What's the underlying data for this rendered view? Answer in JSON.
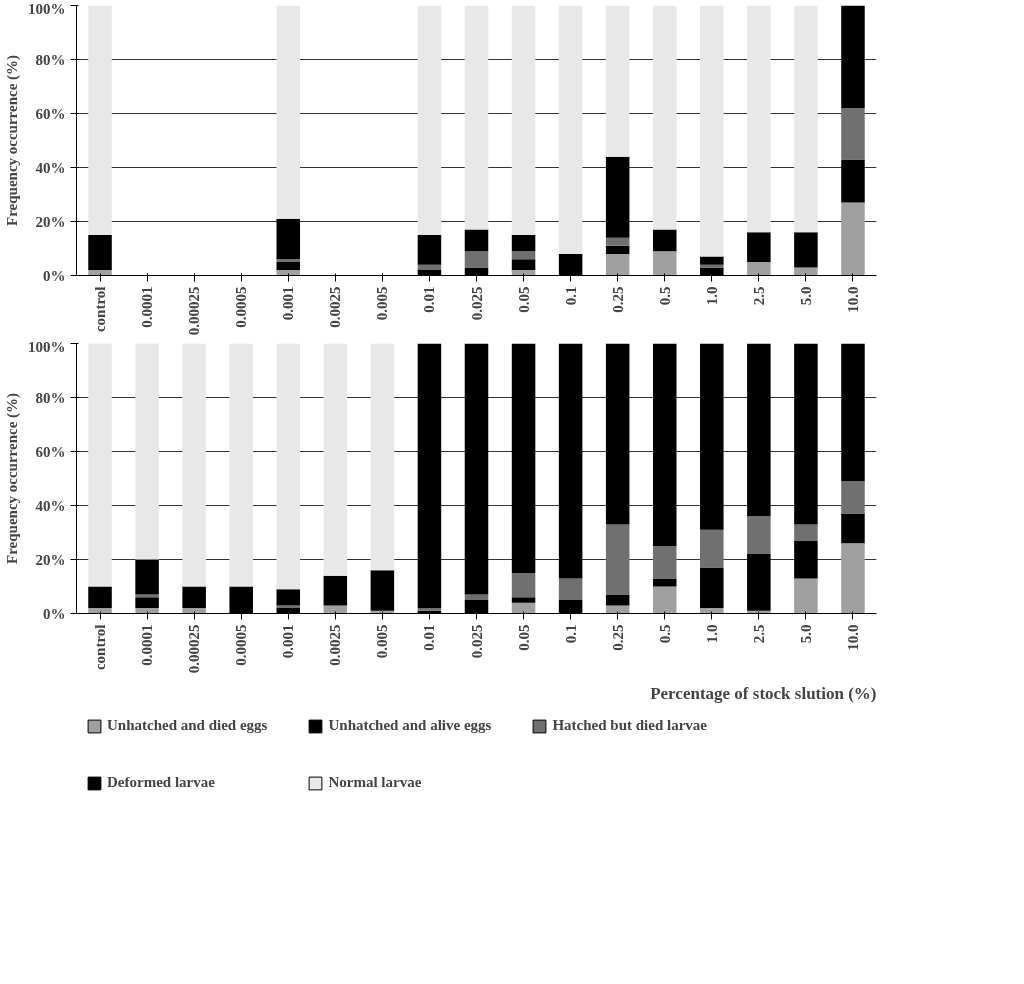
{
  "chart_data": [
    {
      "type": "bar",
      "stacked": true,
      "ylabel": "Frequency occurrence (%)",
      "categories": [
        "control",
        "0.0001",
        "0.00025",
        "0.0005",
        "0.001",
        "0.0025",
        "0.005",
        "0.01",
        "0.025",
        "0.05",
        "0.1",
        "0.25",
        "0.5",
        "1.0",
        "2.5",
        "5.0",
        "10.0"
      ],
      "ylim": [
        0,
        100
      ],
      "yticks": [
        {
          "value": 0,
          "label": "0%"
        },
        {
          "value": 20,
          "label": "20%"
        },
        {
          "value": 40,
          "label": "40%"
        },
        {
          "value": 60,
          "label": "60%"
        },
        {
          "value": 80,
          "label": "80%"
        },
        {
          "value": 100,
          "label": "100%"
        }
      ],
      "grid": "y",
      "legend": false,
      "series": [
        {
          "color": "#a0a0a0",
          "values": [
            2,
            null,
            null,
            null,
            2,
            null,
            null,
            null,
            null,
            2,
            null,
            8,
            9,
            null,
            5,
            3,
            27
          ]
        },
        {
          "color": "#000000",
          "values": [
            null,
            null,
            null,
            null,
            3,
            null,
            null,
            2,
            3,
            4,
            null,
            3,
            null,
            3,
            null,
            null,
            16
          ]
        },
        {
          "color": "#707070",
          "values": [
            null,
            null,
            null,
            null,
            1,
            null,
            null,
            2,
            6,
            3,
            null,
            3,
            null,
            1,
            null,
            null,
            19
          ]
        },
        {
          "color": "#000000",
          "values": [
            13,
            null,
            null,
            null,
            15,
            null,
            null,
            11,
            8,
            6,
            8,
            30,
            8,
            3,
            11,
            13,
            38
          ]
        },
        {
          "color": "#e8e8e8",
          "values": [
            85,
            null,
            null,
            null,
            79,
            null,
            null,
            85,
            83,
            85,
            92,
            56,
            83,
            93,
            84,
            84,
            null
          ]
        }
      ]
    },
    {
      "type": "bar",
      "stacked": true,
      "ylabel": "Frequency occurrence (%)",
      "xlabel": "Percentage of stock slution (%)",
      "categories": [
        "control",
        "0.0001",
        "0.00025",
        "0.0005",
        "0.001",
        "0.0025",
        "0.005",
        "0.01",
        "0.025",
        "0.05",
        "0.1",
        "0.25",
        "0.5",
        "1.0",
        "2.5",
        "5.0",
        "10.0"
      ],
      "ylim": [
        0,
        100
      ],
      "yticks": [
        {
          "value": 0,
          "label": "0%"
        },
        {
          "value": 20,
          "label": "20%"
        },
        {
          "value": 40,
          "label": "40%"
        },
        {
          "value": 60,
          "label": "60%"
        },
        {
          "value": 80,
          "label": "80%"
        },
        {
          "value": 100,
          "label": "100%"
        }
      ],
      "grid": "y",
      "legend": "bottom",
      "series": [
        {
          "name": "Unhatched and died eggs",
          "color": "#a0a0a0",
          "values": [
            2,
            2,
            2,
            null,
            null,
            3,
            1,
            null,
            null,
            4,
            null,
            3,
            10,
            2,
            1,
            13,
            26
          ]
        },
        {
          "name": "Unhatched and alive eggs",
          "color": "#000000",
          "values": [
            null,
            4,
            null,
            null,
            2,
            null,
            null,
            1,
            5,
            2,
            5,
            4,
            3,
            15,
            21,
            14,
            11
          ]
        },
        {
          "name": "Hatched but died larvae",
          "color": "#707070",
          "values": [
            null,
            1,
            null,
            null,
            1,
            null,
            null,
            1,
            2,
            9,
            8,
            26,
            12,
            14,
            14,
            6,
            12
          ]
        },
        {
          "name": "Deformed larvae",
          "color": "#000000",
          "values": [
            8,
            13,
            8,
            10,
            6,
            11,
            15,
            98,
            93,
            85,
            87,
            67,
            75,
            69,
            64,
            67,
            51
          ]
        },
        {
          "name": "Normal larvae",
          "color": "#e8e8e8",
          "values": [
            90,
            80,
            90,
            90,
            91,
            86,
            84,
            null,
            null,
            null,
            null,
            null,
            null,
            null,
            null,
            null,
            null
          ]
        }
      ]
    }
  ]
}
